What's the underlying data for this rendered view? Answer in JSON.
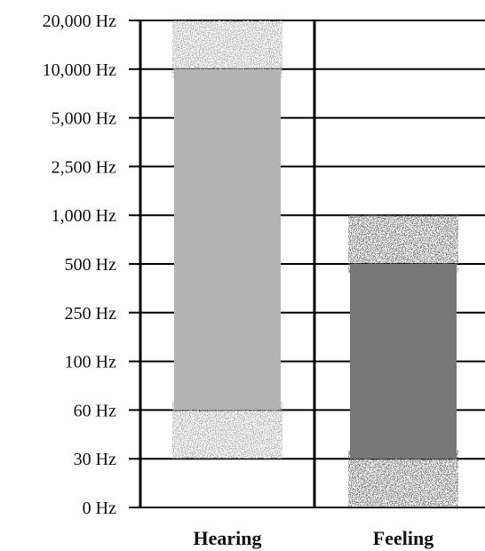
{
  "chart_data": {
    "type": "bar",
    "title": "",
    "xlabel": "",
    "ylabel": "",
    "y_scale": "categorical-frequency (evenly spaced ticks)",
    "y_ticks": [
      {
        "value": 0,
        "label": "0 Hz"
      },
      {
        "value": 30,
        "label": "30 Hz"
      },
      {
        "value": 60,
        "label": "60 Hz"
      },
      {
        "value": 100,
        "label": "100 Hz"
      },
      {
        "value": 250,
        "label": "250 Hz"
      },
      {
        "value": 500,
        "label": "500 Hz"
      },
      {
        "value": 1000,
        "label": "1,000 Hz"
      },
      {
        "value": 2500,
        "label": "2,500 Hz"
      },
      {
        "value": 5000,
        "label": "5,000 Hz"
      },
      {
        "value": 10000,
        "label": "10,000 Hz"
      },
      {
        "value": 20000,
        "label": "20,000 Hz"
      }
    ],
    "ylim": [
      0,
      20000
    ],
    "grid": true,
    "categories": [
      "Hearing",
      "Feeling"
    ],
    "ranges": [
      {
        "category": "Hearing",
        "solid_low": 60,
        "solid_high": 10000,
        "fuzzy_low": 30,
        "fuzzy_high": 20000,
        "color": "#b3b3b3"
      },
      {
        "category": "Feeling",
        "solid_low": 30,
        "solid_high": 500,
        "fuzzy_low": 0,
        "fuzzy_high": 1000,
        "color": "#777777"
      }
    ]
  }
}
